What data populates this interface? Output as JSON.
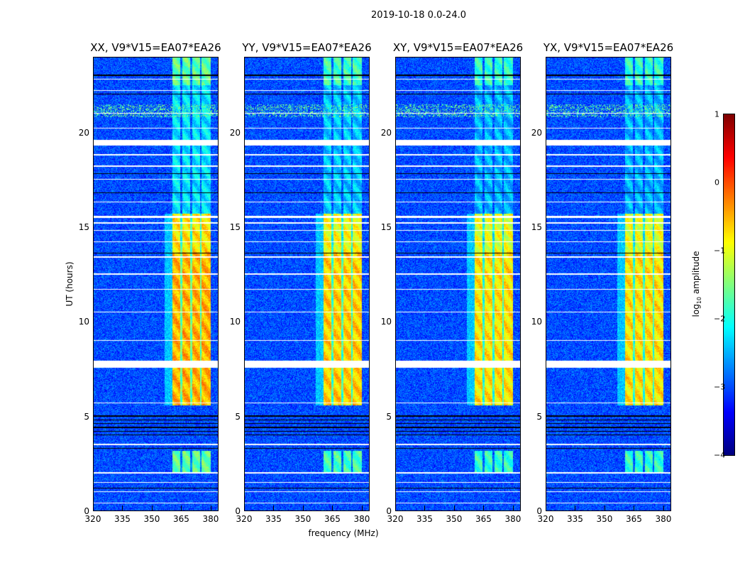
{
  "suptitle": "2019-10-18 0.0-24.0",
  "chart_data": {
    "type": "heatmap",
    "xlabel": "frequency (MHz)",
    "ylabel": "UT (hours)",
    "xlim": [
      320,
      384
    ],
    "ylim": [
      0,
      24
    ],
    "xticks": [
      "320",
      "335",
      "350",
      "365",
      "380"
    ],
    "xtick_values": [
      320,
      335,
      350,
      365,
      380
    ],
    "yticks": [
      "0",
      "5",
      "10",
      "15",
      "20"
    ],
    "ytick_values": [
      0,
      5,
      10,
      15,
      20
    ],
    "colorbar": {
      "label": "log10 amplitude",
      "label_main": "log",
      "label_sub": "10",
      "label_rest": " amplitude",
      "range": [
        -4,
        1
      ],
      "ticks": [
        "1",
        "0",
        "−1",
        "−2",
        "−3",
        "−4"
      ],
      "tick_values": [
        1,
        0,
        -1,
        -2,
        -3,
        -4
      ],
      "colormap": "jet"
    },
    "panels": [
      {
        "title": "XX, V9*V15=EA07*EA26",
        "band_boost": 0.25
      },
      {
        "title": "YY, V9*V15=EA07*EA26",
        "band_boost": 0.1
      },
      {
        "title": "XY, V9*V15=EA07*EA26",
        "band_boost": 0.0
      },
      {
        "title": "YX, V9*V15=EA07*EA26",
        "band_boost": 0.0
      }
    ],
    "background_level": -3.0,
    "rfi_band_mhz": [
      360.5,
      380
    ],
    "subband_gaps_mhz": [
      365,
      370,
      375
    ],
    "band_levels": [
      {
        "ut": [
          0,
          2.0
        ],
        "level": -3.0
      },
      {
        "ut": [
          2.0,
          3.2
        ],
        "level": -1.9
      },
      {
        "ut": [
          3.2,
          5.6
        ],
        "level": -3.0
      },
      {
        "ut": [
          5.6,
          13.7
        ],
        "level": -0.75
      },
      {
        "ut": [
          13.7,
          15.7
        ],
        "level": -1.0
      },
      {
        "ut": [
          15.7,
          22.5
        ],
        "level": -2.5
      },
      {
        "ut": [
          22.5,
          24
        ],
        "level": -1.9
      }
    ],
    "broadband_rfi_ut": [
      [
        20.8,
        21.5,
        -1.6
      ]
    ],
    "flagged_ut": [
      [
        0.4,
        0.45
      ],
      [
        1.0,
        1.05
      ],
      [
        1.5,
        1.55
      ],
      [
        2.0,
        2.05
      ],
      [
        3.5,
        3.55
      ],
      [
        5.7,
        5.75
      ],
      [
        7.57,
        7.94
      ],
      [
        9.0,
        9.05
      ],
      [
        10.5,
        10.55
      ],
      [
        11.7,
        11.75
      ],
      [
        12.5,
        12.55
      ],
      [
        13.4,
        13.45
      ],
      [
        14.2,
        14.25
      ],
      [
        14.8,
        14.85
      ],
      [
        15.2,
        15.25
      ],
      [
        15.5,
        15.6
      ],
      [
        16.3,
        16.35
      ],
      [
        17.5,
        17.55
      ],
      [
        18.2,
        18.25
      ],
      [
        18.8,
        18.85
      ],
      [
        19.3,
        19.6
      ],
      [
        20.2,
        20.25
      ],
      [
        21.0,
        21.05
      ],
      [
        22.2,
        22.25
      ],
      [
        22.8,
        22.85
      ]
    ],
    "nodata_ut": [
      [
        4.0,
        4.05
      ],
      [
        4.2,
        4.25
      ],
      [
        4.4,
        4.45
      ],
      [
        4.6,
        4.65
      ],
      [
        4.8,
        4.85
      ],
      [
        5.0,
        5.05
      ],
      [
        13.6,
        13.65
      ],
      [
        16.8,
        16.85
      ],
      [
        17.8,
        17.85
      ],
      [
        22.0,
        22.05
      ],
      [
        23.0,
        23.05
      ],
      [
        1.2,
        1.25
      ],
      [
        3.3,
        3.35
      ]
    ]
  }
}
